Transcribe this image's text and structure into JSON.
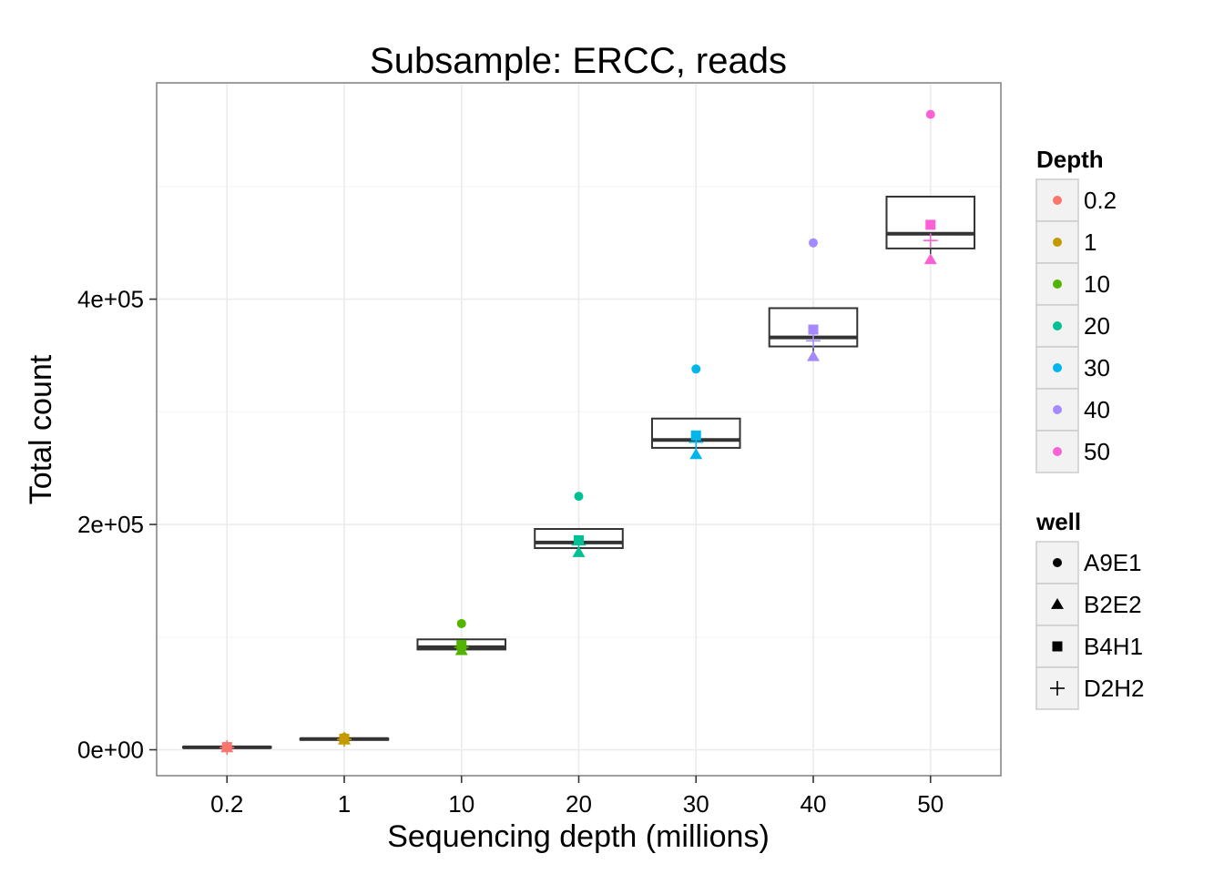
{
  "chart_data": {
    "type": "boxplot",
    "title": "Subsample: ERCC, reads",
    "xlabel": "Sequencing depth (millions)",
    "ylabel": "Total count",
    "categories": [
      "0.2",
      "1",
      "10",
      "20",
      "30",
      "40",
      "50"
    ],
    "ylim": [
      -23000,
      592000
    ],
    "y_ticks": [
      {
        "value": 0,
        "label": "0e+00"
      },
      {
        "value": 200000,
        "label": "2e+05"
      },
      {
        "value": 400000,
        "label": "4e+05"
      }
    ],
    "y_minor_ticks": [
      100000,
      300000,
      500000
    ],
    "boxes": [
      {
        "category": "0.2",
        "q1": 1800,
        "median": 2200,
        "q3": 2600,
        "whisker_low": 1500,
        "whisker_high": 2800
      },
      {
        "category": "1",
        "q1": 8800,
        "median": 9500,
        "q3": 10000,
        "whisker_low": 8500,
        "whisker_high": 10500
      },
      {
        "category": "10",
        "q1": 89000,
        "median": 91000,
        "q3": 98000,
        "whisker_low": 87000,
        "whisker_high": 98000
      },
      {
        "category": "20",
        "q1": 179000,
        "median": 184000,
        "q3": 196000,
        "whisker_low": 175000,
        "whisker_high": 196000
      },
      {
        "category": "30",
        "q1": 268000,
        "median": 275000,
        "q3": 294000,
        "whisker_low": 262000,
        "whisker_high": 294000
      },
      {
        "category": "40",
        "q1": 358000,
        "median": 366000,
        "q3": 392000,
        "whisker_low": 348000,
        "whisker_high": 392000
      },
      {
        "category": "50",
        "q1": 445000,
        "median": 458000,
        "q3": 491000,
        "whisker_low": 433000,
        "whisker_high": 491000
      }
    ],
    "series": [
      {
        "name": "A9E1",
        "shape": "circle",
        "values": [
          2600,
          11000,
          112000,
          225000,
          338000,
          450000,
          564000
        ]
      },
      {
        "name": "B2E2",
        "shape": "triangle",
        "values": [
          1800,
          8600,
          88000,
          175000,
          262000,
          349000,
          435000
        ]
      },
      {
        "name": "B4H1",
        "shape": "square",
        "values": [
          2400,
          9800,
          93000,
          186000,
          279000,
          373000,
          466000
        ]
      },
      {
        "name": "D2H2",
        "shape": "plus",
        "values": [
          2000,
          9200,
          91000,
          182000,
          273000,
          363000,
          452000
        ]
      }
    ],
    "depth_colors": {
      "0.2": "#F8766D",
      "1": "#C49A00",
      "10": "#53B400",
      "20": "#00C094",
      "30": "#00B6EB",
      "40": "#A58AFF",
      "50": "#FB61D7"
    },
    "legend": {
      "placement": "right",
      "depth_title": "Depth",
      "depth_items": [
        "0.2",
        "1",
        "10",
        "20",
        "30",
        "40",
        "50"
      ],
      "well_title": "well",
      "well_items": [
        "A9E1",
        "B2E2",
        "B4H1",
        "D2H2"
      ]
    },
    "grid": true,
    "panel_border_color": "#7F7F7F",
    "grid_color": "#EBEBEB",
    "box_line_color": "#333333"
  }
}
